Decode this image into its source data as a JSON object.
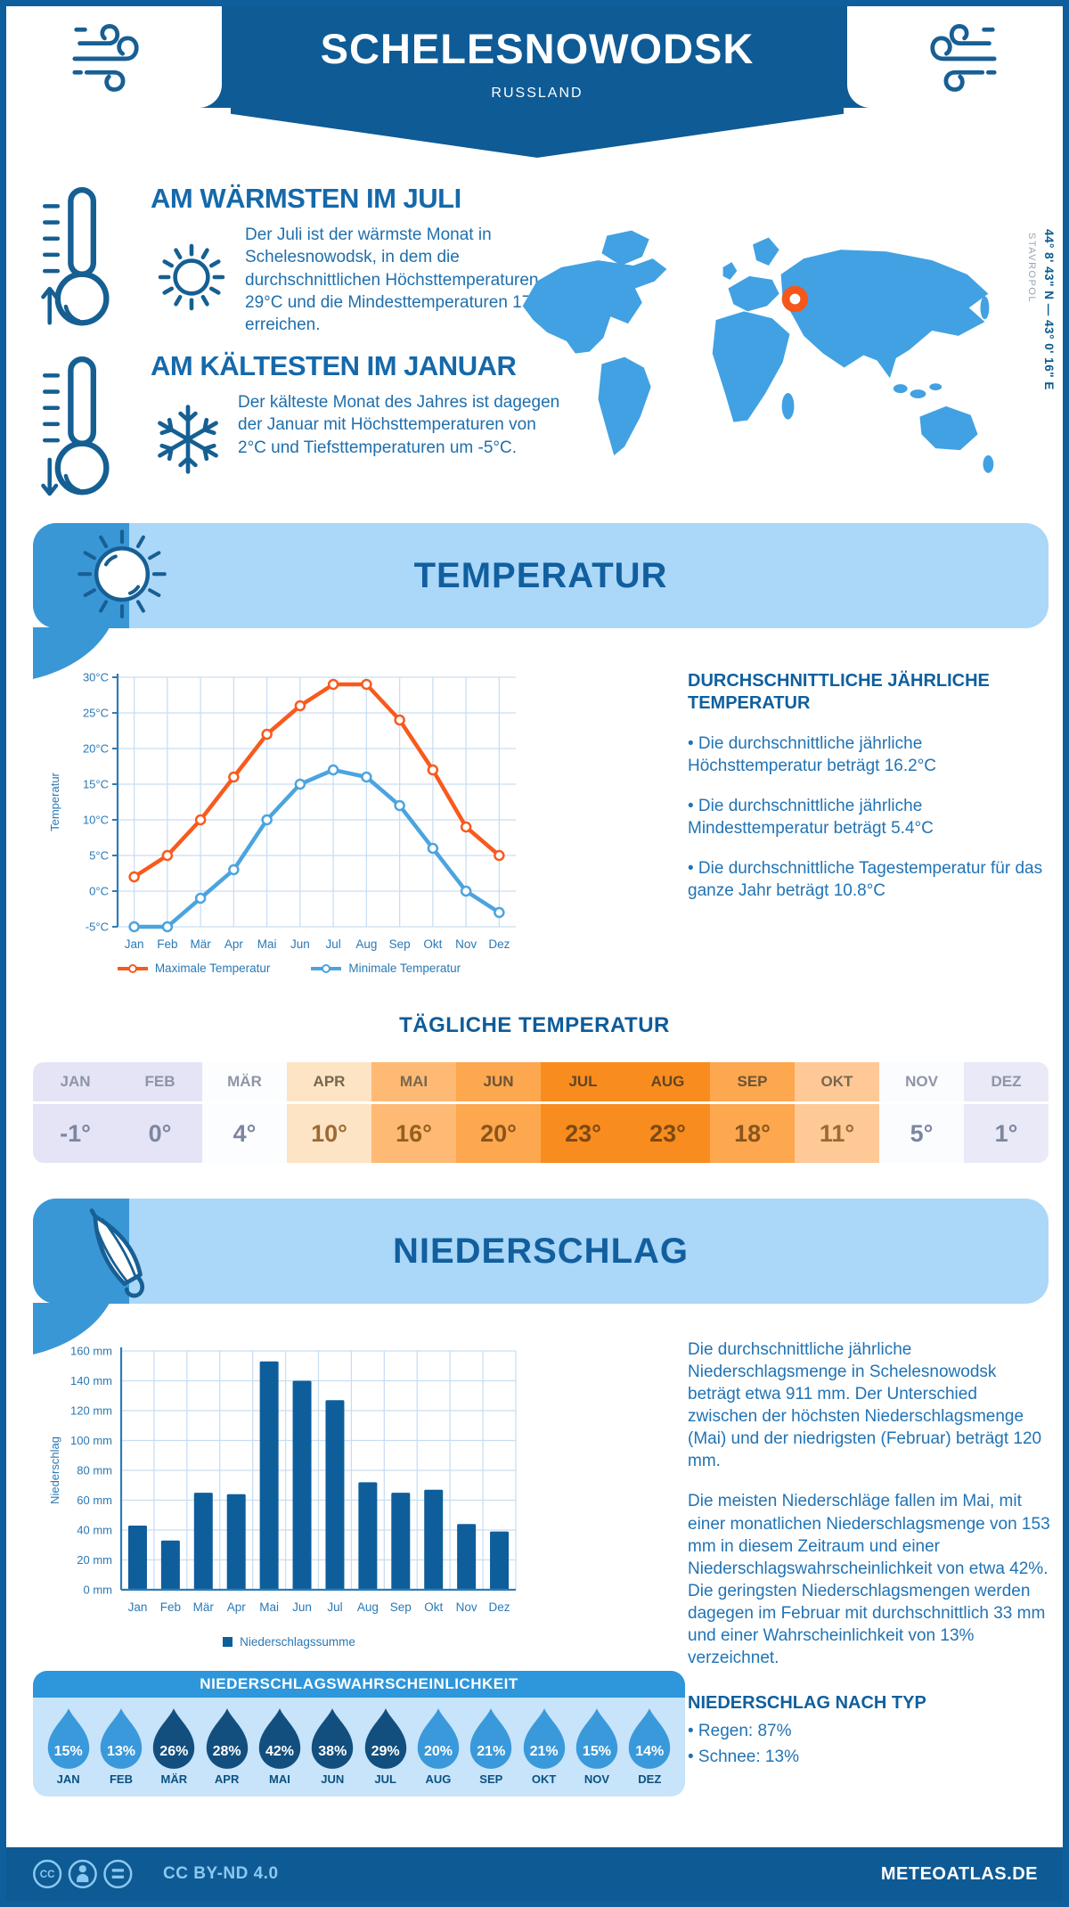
{
  "header": {
    "title": "SCHELESNOWODSK",
    "subtitle": "RUSSLAND"
  },
  "intro": {
    "warm": {
      "title": "AM WÄRMSTEN IM JULI",
      "text": "Der Juli ist der wärmste Monat in Schelesnowodsk, in dem die durchschnittlichen Höchsttemperaturen 29°C und die Mindesttemperaturen 17°C erreichen."
    },
    "cold": {
      "title": "AM KÄLTESTEN IM JANUAR",
      "text": "Der kälteste Monat des Jahres ist dagegen der Januar mit Höchsttemperaturen von 2°C und Tiefsttemperaturen um -5°C."
    },
    "map": {
      "coords": "44° 8' 43\" N — 43° 0' 16\" E",
      "region": "STAVROPOL",
      "land_color": "#41a1e3",
      "marker_color": "#f4571c"
    }
  },
  "temperature": {
    "banner_title": "TEMPERATUR",
    "annual_heading": "DURCHSCHNITTLICHE JÄHRLICHE TEMPERATUR",
    "annual_bullets": [
      "• Die durchschnittliche jährliche Höchsttemperatur beträgt 16.2°C",
      "• Die durchschnittliche jährliche Mindesttemperatur beträgt 5.4°C",
      "• Die durchschnittliche Tagestemperatur für das ganze Jahr beträgt 10.8°C"
    ]
  },
  "daily": {
    "title": "TÄGLICHE TEMPERATUR",
    "months": [
      {
        "label": "JAN",
        "value": "-1°",
        "bg": "#e4e4f6",
        "header_color": "#8d95a6",
        "value_color": "#7d86a0"
      },
      {
        "label": "FEB",
        "value": "0°",
        "bg": "#e4e4f6",
        "header_color": "#8d95a6",
        "value_color": "#7d86a0"
      },
      {
        "label": "MÄR",
        "value": "4°",
        "bg": "#fcfdfe",
        "header_color": "#8d95a6",
        "value_color": "#7d86a0"
      },
      {
        "label": "APR",
        "value": "10°",
        "bg": "#fde4c5",
        "header_color": "#77674f",
        "value_color": "#9c6a33"
      },
      {
        "label": "MAI",
        "value": "16°",
        "bg": "#feba74",
        "header_color": "#77674f",
        "value_color": "#96601f"
      },
      {
        "label": "JUN",
        "value": "20°",
        "bg": "#fda74f",
        "header_color": "#6b5436",
        "value_color": "#8a551a"
      },
      {
        "label": "JUL",
        "value": "23°",
        "bg": "#f98c1e",
        "header_color": "#5f4526",
        "value_color": "#7c4a12"
      },
      {
        "label": "AUG",
        "value": "23°",
        "bg": "#f98c1e",
        "header_color": "#5f4526",
        "value_color": "#7c4a12"
      },
      {
        "label": "SEP",
        "value": "18°",
        "bg": "#fda74f",
        "header_color": "#6b5436",
        "value_color": "#8a551a"
      },
      {
        "label": "OKT",
        "value": "11°",
        "bg": "#fec996",
        "header_color": "#77674f",
        "value_color": "#9c6a33"
      },
      {
        "label": "NOV",
        "value": "5°",
        "bg": "#fbfcfe",
        "header_color": "#8d95a6",
        "value_color": "#7d86a0"
      },
      {
        "label": "DEZ",
        "value": "1°",
        "bg": "#e9e9f7",
        "header_color": "#8d95a6",
        "value_color": "#7d86a0"
      }
    ]
  },
  "precipitation": {
    "banner_title": "NIEDERSCHLAG",
    "paragraphs": [
      "Die durchschnittliche jährliche Niederschlagsmenge in Schelesnowodsk beträgt etwa 911 mm. Der Unterschied zwischen der höchsten Niederschlagsmenge (Mai) und der niedrigsten (Februar) beträgt 120 mm.",
      "Die meisten Niederschläge fallen im Mai, mit einer monatlichen Niederschlagsmenge von 153 mm in diesem Zeitraum und einer Niederschlagswahrscheinlichkeit von etwa 42%. Die geringsten Niederschlagsmengen werden dagegen im Februar mit durchschnittlich 33 mm und einer Wahrscheinlichkeit von 13% verzeichnet."
    ],
    "type_heading": "NIEDERSCHLAG NACH TYP",
    "type_bullets": [
      "• Regen: 87%",
      "• Schnee: 13%"
    ]
  },
  "probability": {
    "title": "NIEDERSCHLAGSWAHRSCHEINLICHKEIT",
    "light_color": "#3a99da",
    "dark_color": "#124f7e",
    "items": [
      {
        "month": "JAN",
        "value": "15%",
        "dark": false
      },
      {
        "month": "FEB",
        "value": "13%",
        "dark": false
      },
      {
        "month": "MÄR",
        "value": "26%",
        "dark": true
      },
      {
        "month": "APR",
        "value": "28%",
        "dark": true
      },
      {
        "month": "MAI",
        "value": "42%",
        "dark": true
      },
      {
        "month": "JUN",
        "value": "38%",
        "dark": true
      },
      {
        "month": "JUL",
        "value": "29%",
        "dark": true
      },
      {
        "month": "AUG",
        "value": "20%",
        "dark": false
      },
      {
        "month": "SEP",
        "value": "21%",
        "dark": false
      },
      {
        "month": "OKT",
        "value": "21%",
        "dark": false
      },
      {
        "month": "NOV",
        "value": "15%",
        "dark": false
      },
      {
        "month": "DEZ",
        "value": "14%",
        "dark": false
      }
    ]
  },
  "chart_data": [
    {
      "type": "line",
      "title": "Temperatur",
      "categories": [
        "Jan",
        "Feb",
        "Mär",
        "Apr",
        "Mai",
        "Jun",
        "Jul",
        "Aug",
        "Sep",
        "Okt",
        "Nov",
        "Dez"
      ],
      "series": [
        {
          "name": "Maximale Temperatur",
          "color": "#f85a1d",
          "values": [
            2,
            5,
            10,
            16,
            22,
            26,
            29,
            29,
            24,
            17,
            9,
            5
          ]
        },
        {
          "name": "Minimale Temperatur",
          "color": "#4ba4df",
          "values": [
            -5,
            -5,
            -1,
            3,
            10,
            15,
            17,
            16,
            12,
            6,
            0,
            -3
          ]
        }
      ],
      "ylabel": "Temperatur",
      "ylim": [
        -5,
        30
      ],
      "ytick_step": 5,
      "ytick_suffix": "°C",
      "grid": true,
      "legend_position": "bottom"
    },
    {
      "type": "bar",
      "title": "Niederschlag",
      "categories": [
        "Jan",
        "Feb",
        "Mär",
        "Apr",
        "Mai",
        "Jun",
        "Jul",
        "Aug",
        "Sep",
        "Okt",
        "Nov",
        "Dez"
      ],
      "values": [
        43,
        33,
        65,
        64,
        153,
        140,
        127,
        72,
        65,
        67,
        44,
        39
      ],
      "bar_color": "#0e5e9c",
      "ylabel": "Niederschlag",
      "ylim": [
        0,
        160
      ],
      "ytick_step": 20,
      "ytick_suffix": " mm",
      "grid": true,
      "legend": "Niederschlagssumme",
      "legend_position": "bottom"
    }
  ],
  "footer": {
    "license": "CC BY-ND 4.0",
    "site": "METEOATLAS.DE"
  }
}
